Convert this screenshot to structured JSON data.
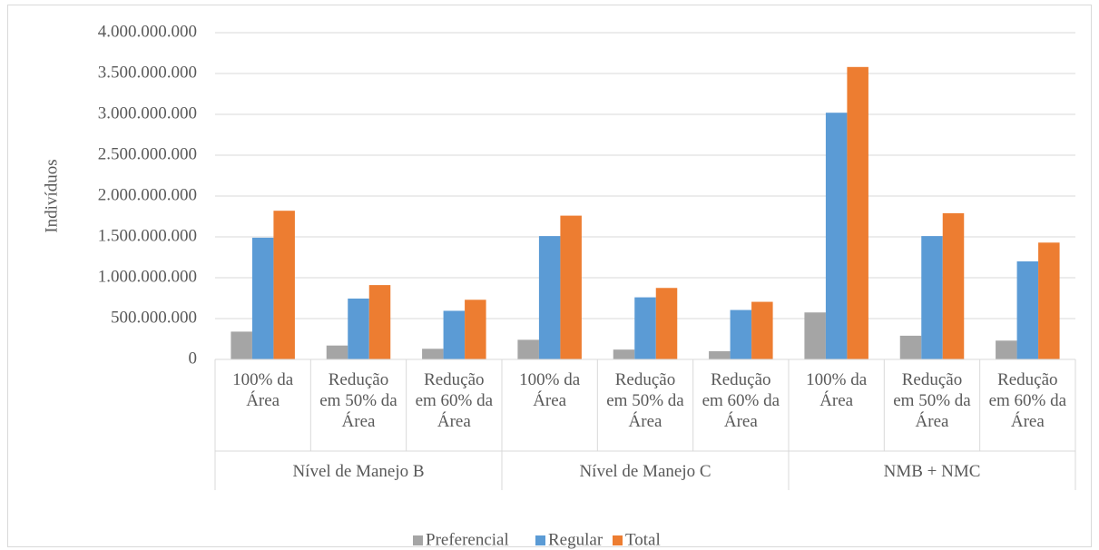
{
  "chart_data": {
    "type": "bar",
    "y_label": "Indivíduos",
    "groups": [
      {
        "name": "Nível de Manejo B",
        "categories": [
          "100% da Área",
          "Redução em 50% da Área",
          "Redução em 60% da Área"
        ]
      },
      {
        "name": "Nível de Manejo C",
        "categories": [
          "100% da Área",
          "Redução em 50% da Área",
          "Redução em 60% da Área"
        ]
      },
      {
        "name": "NMB + NMC",
        "categories": [
          "100% da Área",
          "Redução em 50% da Área",
          "Redução em 60% da Área"
        ]
      }
    ],
    "series": [
      {
        "name": "Preferencial",
        "color": "#a5a5a5",
        "values": [
          340000000,
          170000000,
          130000000,
          240000000,
          120000000,
          100000000,
          575000000,
          290000000,
          230000000
        ]
      },
      {
        "name": "Regular",
        "color": "#5b9bd5",
        "values": [
          1490000000,
          745000000,
          595000000,
          1510000000,
          760000000,
          605000000,
          3020000000,
          1510000000,
          1200000000
        ]
      },
      {
        "name": "Total",
        "color": "#ed7d31",
        "values": [
          1820000000,
          910000000,
          730000000,
          1760000000,
          875000000,
          705000000,
          3580000000,
          1790000000,
          1430000000
        ]
      }
    ],
    "ylim": [
      0,
      4000000000
    ],
    "yticks": [
      0,
      {
        "value": 500000000,
        "label": "500.000.000"
      },
      {
        "value": 1000000000,
        "label": "1.000.000.000"
      },
      {
        "value": 1500000000,
        "label": "1.500.000.000"
      },
      {
        "value": 2000000000,
        "label": "2.000.000.000"
      },
      {
        "value": 2500000000,
        "label": "2.500.000.000"
      },
      {
        "value": 3000000000,
        "label": "3.000.000.000"
      },
      {
        "value": 3500000000,
        "label": "3.500.000.000"
      },
      {
        "value": 4000000000,
        "label": "4.000.000.000"
      }
    ],
    "grid": true,
    "legend": "bottom"
  }
}
